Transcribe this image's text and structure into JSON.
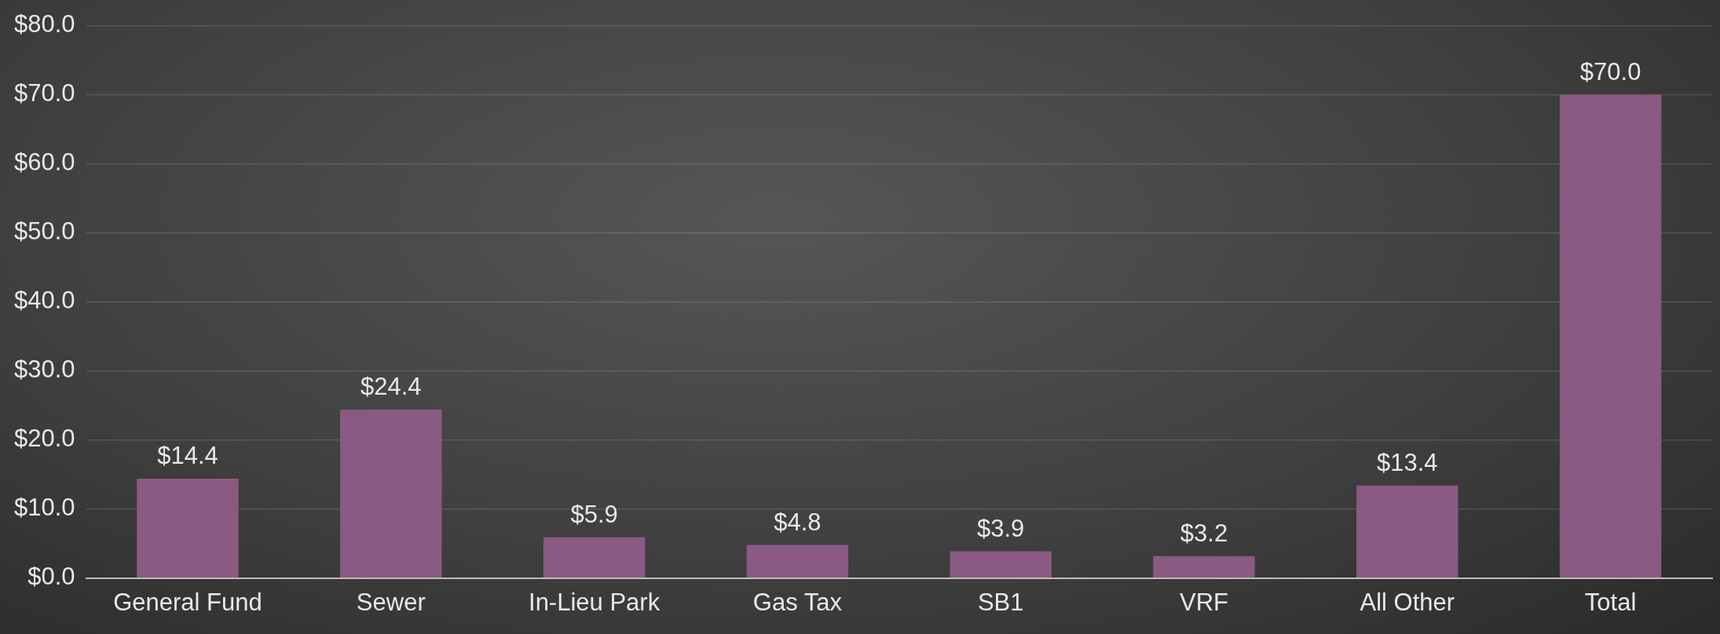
{
  "chart_data": {
    "type": "bar",
    "categories": [
      "General Fund",
      "Sewer",
      "In-Lieu Park",
      "Gas Tax",
      "SB1",
      "VRF",
      "All Other",
      "Total"
    ],
    "values": [
      14.4,
      24.4,
      5.9,
      4.8,
      3.9,
      3.2,
      13.4,
      70.0
    ],
    "value_labels": [
      "$14.4",
      "$24.4",
      "$5.9",
      "$4.8",
      "$3.9",
      "$3.2",
      "$13.4",
      "$70.0"
    ],
    "color": "#8a5a82",
    "ylim": [
      0,
      80
    ],
    "yticks": [
      {
        "value": 0,
        "label": "$0.0"
      },
      {
        "value": 10,
        "label": "$10.0"
      },
      {
        "value": 20,
        "label": "$20.0"
      },
      {
        "value": 30,
        "label": "$30.0"
      },
      {
        "value": 40,
        "label": "$40.0"
      },
      {
        "value": 50,
        "label": "$50.0"
      },
      {
        "value": 60,
        "label": "$60.0"
      },
      {
        "value": 70,
        "label": "$70.0"
      },
      {
        "value": 80,
        "label": "$80.0"
      }
    ],
    "grid": "y",
    "legend": false
  }
}
